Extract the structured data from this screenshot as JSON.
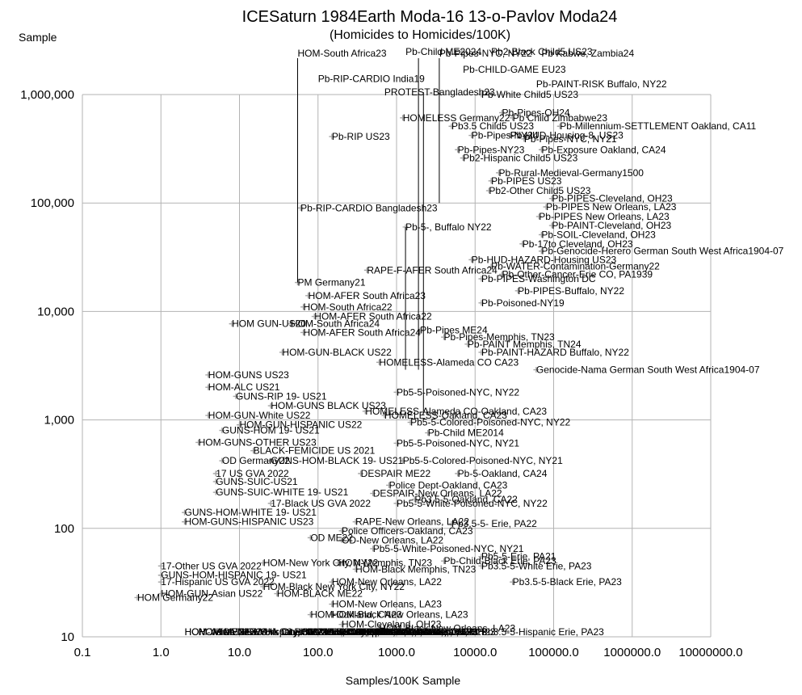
{
  "chart_data": {
    "type": "scatter",
    "title": "ICESaturn 1984Earth Moda-16 13-o-Pavlov Moda24",
    "subtitle": "(Homicides to Homicides/100K)",
    "xlabel": "Samples/100K Sample",
    "ylabel": "Sample",
    "x_scale": "log",
    "y_scale": "log",
    "xlim": [
      0.1,
      10000000
    ],
    "ylim": [
      10,
      1000000
    ],
    "x_tick_labels": [
      "0.1",
      "1.0",
      "10.0",
      "100.0",
      "1000.0",
      "10000.0",
      "100000.0",
      "1000000.0",
      "10000000.0"
    ],
    "y_tick_labels": [
      "10",
      "100",
      "1,000",
      "10,000",
      "100,000",
      "1,000,000"
    ],
    "grid": true,
    "marker": "+",
    "marker_color": "#a6a6a6",
    "annotations": [
      {
        "text": "Pb-Child ME2024",
        "x": 1300,
        "y": 3500000
      },
      {
        "text": "Pb2-Black Child5 US23",
        "x": 16000,
        "y": 3500000
      },
      {
        "text": "HOM-South Africa23",
        "x": 55,
        "y": 2400000
      },
      {
        "text": "Pb-Pipes-NYC, NY22",
        "x": 3500,
        "y": 2400000
      },
      {
        "text": "Pb Kabwe, Zambia24",
        "x": 70000,
        "y": 2400000
      },
      {
        "text": "Pb-CHILD-GAME EU23",
        "x": 7000,
        "y": 1700000
      },
      {
        "text": "Pb-RIP-CARDIO India19",
        "x": 100,
        "y": 1400000
      },
      {
        "text": "Pb-PAINT-RISK Buffalo, NY22",
        "x": 60000,
        "y": 1250000
      },
      {
        "text": "PROTEST-Bangladesh23",
        "x": 700,
        "y": 1050000
      },
      {
        "text": "Pb-White Child5 US23",
        "x": 12000,
        "y": 1000000
      },
      {
        "text": "Pb-Pipes-OH24",
        "x": 22000,
        "y": 680000
      },
      {
        "text": "HOMELESS Germany22",
        "x": 1200,
        "y": 610000
      },
      {
        "text": "Pb Child Zimbabwe23",
        "x": 30000,
        "y": 610000
      },
      {
        "text": "Pb3.5 Child5 US23",
        "x": 5000,
        "y": 510000
      },
      {
        "text": "Pb-Millennium-SETTLEMENT Oakland, CA11",
        "x": 120000,
        "y": 510000
      },
      {
        "text": "Pb-Pipes-NY24",
        "x": 9000,
        "y": 420000
      },
      {
        "text": "Pb-HUD-Housing-8, US23",
        "x": 28000,
        "y": 420000
      },
      {
        "text": "Pb-RIP US23",
        "x": 150,
        "y": 410000
      },
      {
        "text": "Pb-Pipes-NYC, NY21",
        "x": 42000,
        "y": 390000
      },
      {
        "text": "Pb-Pipes-NY23",
        "x": 6000,
        "y": 310000
      },
      {
        "text": "Pb-Exposure Oakland, CA24",
        "x": 70000,
        "y": 310000
      },
      {
        "text": "Pb2-Hispanic Child5 US23",
        "x": 7000,
        "y": 260000
      },
      {
        "text": "Pb-Rural-Medieval-Germany1500",
        "x": 20000,
        "y": 190000
      },
      {
        "text": "Pb-PIPES US23",
        "x": 16000,
        "y": 160000
      },
      {
        "text": "Pb2-Other Child5 US23",
        "x": 15000,
        "y": 130000
      },
      {
        "text": "Pb-PIPES-Cleveland, OH23",
        "x": 95000,
        "y": 110000
      },
      {
        "text": "Pb-PIPES New Orleans, LA23",
        "x": 80000,
        "y": 92000
      },
      {
        "text": "Pb-RIP-CARDIO Bangladesh23",
        "x": 60,
        "y": 90000
      },
      {
        "text": "Pb-PIPES New Orleans, LA23",
        "x": 65000,
        "y": 75000
      },
      {
        "text": "Pb-PAINT-Cleveland, OH23",
        "x": 95000,
        "y": 62000
      },
      {
        "text": "Pb-5-, Buffalo NY22",
        "x": 1300,
        "y": 60000
      },
      {
        "text": "Pb-SOIL-Cleveland, OH23",
        "x": 70000,
        "y": 51000
      },
      {
        "text": "Pb-17to Cleveland, OH23",
        "x": 40000,
        "y": 42000
      },
      {
        "text": "Pb-Genocide-Herero German South West Africa1904-07",
        "x": 70000,
        "y": 36000
      },
      {
        "text": "Pb-HUD-HAZARD-Housing US23",
        "x": 9000,
        "y": 30000
      },
      {
        "text": "Pb-WATER-Contamination-Germany22",
        "x": 16000,
        "y": 26000
      },
      {
        "text": "RAPE-F-AFER South Africa24",
        "x": 420,
        "y": 24000
      },
      {
        "text": "Pb-Other-Cancer-Erie CO, PA1939",
        "x": 22000,
        "y": 22000
      },
      {
        "text": "Pb-PIPES-Washington DC",
        "x": 12000,
        "y": 20000
      },
      {
        "text": "PM Germany21",
        "x": 55,
        "y": 18500
      },
      {
        "text": "Pb-PIPES-Buffalo, NY22",
        "x": 35000,
        "y": 15500
      },
      {
        "text": "HOM-AFER South Africa23",
        "x": 75,
        "y": 14000
      },
      {
        "text": "Pb-Poisoned-NY19",
        "x": 12000,
        "y": 12000
      },
      {
        "text": "HOM-South Africa22",
        "x": 65,
        "y": 11000
      },
      {
        "text": "HOM-AFER South Africa22",
        "x": 90,
        "y": 9000
      },
      {
        "text": "HOM GUN-US20",
        "x": 8,
        "y": 7700
      },
      {
        "text": "HOM-South Africa24",
        "x": 45,
        "y": 7700
      },
      {
        "text": "HOM-AFER South Africa24",
        "x": 65,
        "y": 6400
      },
      {
        "text": "Pb-Pipes ME24",
        "x": 2000,
        "y": 6700
      },
      {
        "text": "Pb-Pipes-Memphis, TN23",
        "x": 4000,
        "y": 5800
      },
      {
        "text": "Pb-PAINT Memphis, TN24",
        "x": 8000,
        "y": 5000
      },
      {
        "text": "HOM-GUN-BLACK US22",
        "x": 35,
        "y": 4200
      },
      {
        "text": "Pb-PAINT-HAZARD Buffalo, NY22",
        "x": 12000,
        "y": 4200
      },
      {
        "text": "HOMELESS-Alameda CO CA23",
        "x": 600,
        "y": 3400
      },
      {
        "text": "Genocide-Nama German South West Africa1904-07",
        "x": 60000,
        "y": 2900
      },
      {
        "text": "HOM-GUNS US23",
        "x": 4,
        "y": 2600
      },
      {
        "text": "HOM-ALC US21",
        "x": 4,
        "y": 2000
      },
      {
        "text": "GUNS-RIP 19- US21",
        "x": 9,
        "y": 1650
      },
      {
        "text": "Pb5-5-Poisoned-NYC, NY22",
        "x": 1000,
        "y": 1800
      },
      {
        "text": "HOM-GUNS BLACK US23",
        "x": 25,
        "y": 1350
      },
      {
        "text": "HOMELESS-Alameda CO-Oakland, CA23",
        "x": 400,
        "y": 1200
      },
      {
        "text": "HOM-GUN-White US22",
        "x": 4,
        "y": 1100
      },
      {
        "text": "HOMELESS-Oakland, CA23",
        "x": 700,
        "y": 1100
      },
      {
        "text": "Pb5-5-Colored-Poisoned-NYC, NY22",
        "x": 1500,
        "y": 950
      },
      {
        "text": "GUNS-HOM 19- US21",
        "x": 6,
        "y": 800
      },
      {
        "text": "HOM-GUN-HISPANIC US22",
        "x": 10,
        "y": 900
      },
      {
        "text": "Pb-Child ME2014",
        "x": 2500,
        "y": 760
      },
      {
        "text": "HOM-GUNS-OTHER US23",
        "x": 3,
        "y": 620
      },
      {
        "text": "Pb5-5-Poisoned-NYC, NY21",
        "x": 1000,
        "y": 610
      },
      {
        "text": "BLACK-FEMICIDE US 2021",
        "x": 15,
        "y": 520
      },
      {
        "text": "OD Germany22",
        "x": 6,
        "y": 420
      },
      {
        "text": "GUNS-HOM-BLACK 19- US21",
        "x": 25,
        "y": 420
      },
      {
        "text": "Pb5-5-Colored-Poisoned-NYC, NY21",
        "x": 1200,
        "y": 420
      },
      {
        "text": "17 US GVA 2022",
        "x": 5,
        "y": 320
      },
      {
        "text": "DESPAIR ME22",
        "x": 350,
        "y": 320
      },
      {
        "text": "Pb-5-Oakland, CA24",
        "x": 6000,
        "y": 320
      },
      {
        "text": "GUNS-SUIC-US21",
        "x": 5,
        "y": 270
      },
      {
        "text": "Police Dept-Oakland, CA23",
        "x": 800,
        "y": 250
      },
      {
        "text": "GUNS-SUIC-WHITE 19- US21",
        "x": 5,
        "y": 215
      },
      {
        "text": "DESPAIR-New Orleans, LA22",
        "x": 500,
        "y": 210
      },
      {
        "text": "Pb3.5-5-Oakland, CA22",
        "x": 1700,
        "y": 185
      },
      {
        "text": "17-Black US GVA 2022",
        "x": 25,
        "y": 170
      },
      {
        "text": "Pb5-5-White-Poisoned-NYC, NY22",
        "x": 1000,
        "y": 170
      },
      {
        "text": "GUNS-HOM-WHITE 19- US21",
        "x": 2,
        "y": 140
      },
      {
        "text": "HOM-GUNS-HISPANIC US23",
        "x": 2,
        "y": 115
      },
      {
        "text": "RAPE-New Orleans, LA22",
        "x": 300,
        "y": 115
      },
      {
        "text": "Pb3.5-5- Erie, PA22",
        "x": 5000,
        "y": 110
      },
      {
        "text": "Police Officers-Oakland, CA23",
        "x": 200,
        "y": 95
      },
      {
        "text": "OD ME22",
        "x": 80,
        "y": 82
      },
      {
        "text": "OD-New Orleans, LA22",
        "x": 200,
        "y": 78
      },
      {
        "text": "Pb5-5-White-Poisoned-NYC, NY21",
        "x": 500,
        "y": 65
      },
      {
        "text": "Pb5-5-Erie, PA21",
        "x": 12000,
        "y": 55
      },
      {
        "text": "17-Other US GVA 2022",
        "x": 1,
        "y": 45
      },
      {
        "text": "HOM-New York City, NY22",
        "x": 20,
        "y": 48
      },
      {
        "text": "HOM-Memphis, TN23",
        "x": 180,
        "y": 48
      },
      {
        "text": "Pb-Child-Black Erie, PA23",
        "x": 4000,
        "y": 50
      },
      {
        "text": "Pb3.5-5-White Erie, PA23",
        "x": 12000,
        "y": 45
      },
      {
        "text": "GUNS-HOM-HISPANIC 19- US21",
        "x": 1,
        "y": 37
      },
      {
        "text": "HOM-Black Memphis, TN23",
        "x": 300,
        "y": 42
      },
      {
        "text": "17-Hispanic US GVA 2022",
        "x": 1,
        "y": 32
      },
      {
        "text": "HOM-New Orleans, LA22",
        "x": 150,
        "y": 32
      },
      {
        "text": "Pb3.5-5-Black Erie, PA23",
        "x": 30000,
        "y": 32
      },
      {
        "text": "HOM-Black New York City, NY22",
        "x": 20,
        "y": 29
      },
      {
        "text": "HOM-GUN-Asian US22",
        "x": 1,
        "y": 25
      },
      {
        "text": "HOM-BLACK ME22",
        "x": 30,
        "y": 25
      },
      {
        "text": "HOM Germany22",
        "x": 0.5,
        "y": 23
      },
      {
        "text": "HOM-New Orleans, LA23",
        "x": 150,
        "y": 20
      },
      {
        "text": "HOM-Oakland, CA23",
        "x": 80,
        "y": 16
      },
      {
        "text": "HOM-Black New Orleans, LA23",
        "x": 150,
        "y": 16
      },
      {
        "text": "HOM-Cleveland, OH23",
        "x": 200,
        "y": 13
      },
      {
        "text": "HOM-Black New Orleans, LA23",
        "x": 600,
        "y": 12
      },
      {
        "text": "HOM-18+ Black Cleveland, OH23",
        "x": 200,
        "y": 10.5
      },
      {
        "text": "SUIC-New Orleans, LA23",
        "x": 50,
        "y": 9
      },
      {
        "text": "HOM-Hispanic New York City, NY22",
        "x": 10,
        "y": 8
      },
      {
        "text": "HOM-18-Black Cleveland, OH23",
        "x": 300,
        "y": 8
      },
      {
        "text": "HOM-Black Oakland, CA24",
        "x": 300,
        "y": 6.5
      },
      {
        "text": "HOM-Buffalo, NY22",
        "x": 80,
        "y": 6
      },
      {
        "text": "Pb3.5-5-Hispanic Erie, PA23",
        "x": 12000,
        "y": 6
      },
      {
        "text": "HOM-Black Buffalo, NY22",
        "x": 150,
        "y": 5
      },
      {
        "text": "HOM ME23",
        "x": 5,
        "y": 3.8
      },
      {
        "text": "HOM-Other Memphis, TN23",
        "x": 60,
        "y": 3
      },
      {
        "text": "HOM-Other Oakland, CA23",
        "x": 15,
        "y": 2.5
      },
      {
        "text": "HOM ME22",
        "x": 3,
        "y": 1.8
      },
      {
        "text": "HOM-17 New Orleans, LA23",
        "x": 120,
        "y": 1.6
      },
      {
        "text": "HOM-Hispanic Cleveland, OH23",
        "x": 150,
        "y": 1.3
      },
      {
        "text": "HOM-White New York City, NY22",
        "x": 2,
        "y": 1.1
      },
      {
        "text": "HOM-18+ Black Cleveland, OH23",
        "x": 150,
        "y": 1.0
      },
      {
        "text": "HOM ME21",
        "x": 3,
        "y": 0.8
      },
      {
        "text": "HOM-Black New Orleans, LA23",
        "x": 200,
        "y": 0.8
      },
      {
        "text": "HOM-17- Black Cleveland, OH23",
        "x": 150,
        "y": 0.7
      },
      {
        "text": "HOM-Asian New York City, NY22",
        "x": 2,
        "y": 0.6
      },
      {
        "text": "HOM-White New Orleans, LA23",
        "x": 50,
        "y": 0.6
      },
      {
        "text": "HOM-Black Erie, PA23",
        "x": 200,
        "y": 0.4
      }
    ],
    "leader_lines": [
      {
        "x": 55,
        "y_from": 2400000,
        "y_to": 18500
      },
      {
        "x": 1900,
        "y_from": 3500000,
        "y_to": 2900
      },
      {
        "x": 2200,
        "y_from": 1050000,
        "y_to": 1200
      },
      {
        "x": 1300,
        "y_from": 60000,
        "y_to": 2900
      },
      {
        "x": 3500,
        "y_from": 2400000,
        "y_to": 100000
      }
    ]
  }
}
